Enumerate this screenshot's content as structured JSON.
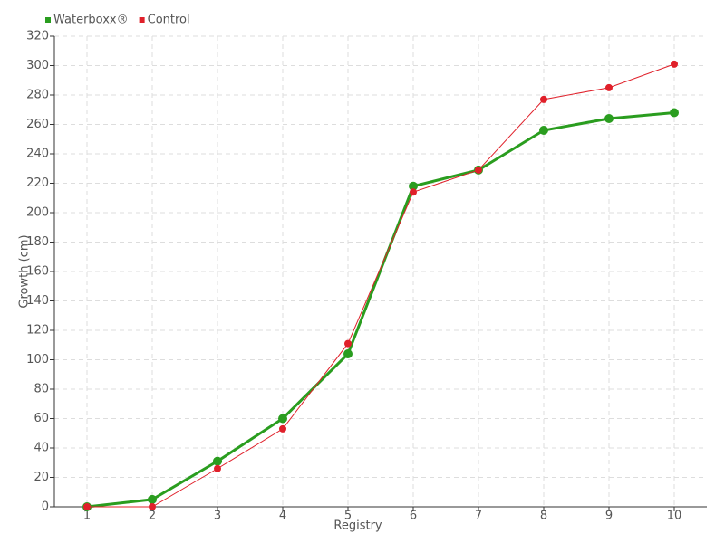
{
  "chart_data": {
    "type": "line",
    "x": [
      1,
      2,
      3,
      4,
      5,
      6,
      7,
      8,
      9,
      10
    ],
    "xlim": [
      0.5,
      10.5
    ],
    "xticks": [
      1,
      2,
      3,
      4,
      5,
      6,
      7,
      8,
      9,
      10
    ],
    "ylim": [
      0,
      320
    ],
    "yticks": [
      0,
      20,
      40,
      60,
      80,
      100,
      120,
      140,
      160,
      180,
      200,
      220,
      240,
      260,
      280,
      300,
      320
    ],
    "x_label": "Registry",
    "y_label": "Growth (cm)",
    "grid": true,
    "legend": "top-left",
    "series": [
      {
        "name": "Waterboxx®",
        "color": "#2a9d1f",
        "values": [
          0,
          5,
          31,
          60,
          104,
          218,
          229,
          256,
          264,
          268
        ]
      },
      {
        "name": "Control",
        "color": "#e0202a",
        "values": [
          0,
          0,
          26,
          53,
          111,
          214,
          229,
          277,
          285,
          301
        ]
      }
    ]
  }
}
